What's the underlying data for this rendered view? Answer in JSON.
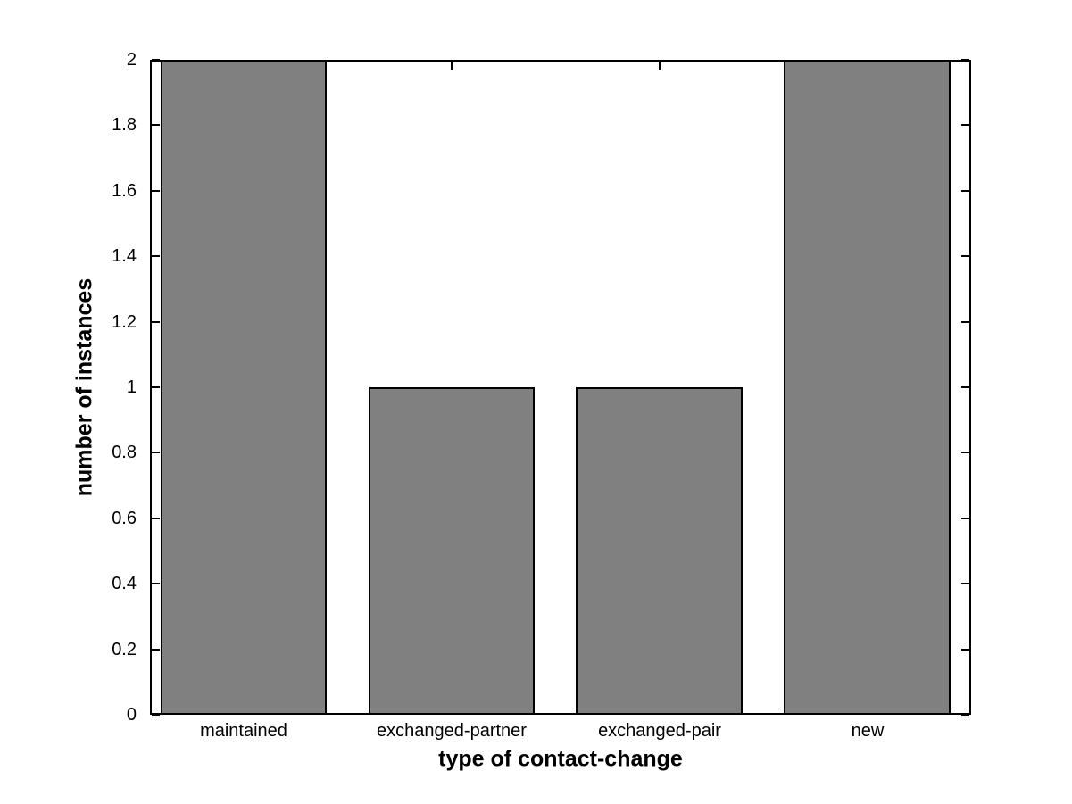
{
  "figure": {
    "background": "#ffffff"
  },
  "chart_data": {
    "type": "bar",
    "title": "",
    "xlabel": "type of contact-change",
    "ylabel": "number of instances",
    "categories": [
      "maintained",
      "exchanged-partner",
      "exchanged-pair",
      "new"
    ],
    "values": [
      2,
      1,
      1,
      2
    ],
    "ylim": [
      0,
      2
    ],
    "xlim": [
      0.55,
      4.5
    ],
    "bar_positions": [
      1,
      2,
      3,
      4
    ],
    "bar_width": 0.8,
    "yticks": [
      0,
      0.2,
      0.4,
      0.6,
      0.8,
      1,
      1.2,
      1.4,
      1.6,
      1.8,
      2
    ],
    "ytick_labels": [
      "0",
      "0.2",
      "0.4",
      "0.6",
      "0.8",
      "1",
      "1.2",
      "1.4",
      "1.6",
      "1.8",
      "2"
    ],
    "bar_color": "#808080",
    "bar_edge_color": "#000000",
    "axis_color": "#000000",
    "grid": false,
    "legend": false,
    "box": true,
    "tick_direction": "in"
  }
}
